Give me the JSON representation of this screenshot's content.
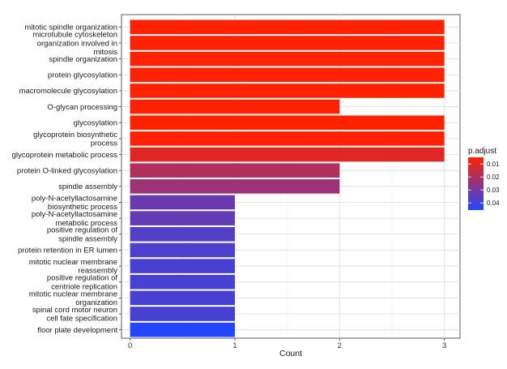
{
  "chart_data": {
    "type": "bar",
    "orientation": "horizontal",
    "title": "",
    "xlabel": "Count",
    "ylabel": "",
    "xlim": [
      0,
      3
    ],
    "xticks": [
      "0",
      "1",
      "2",
      "3"
    ],
    "grid": true,
    "categories": [
      [
        "mitotic spindle organization"
      ],
      [
        "microtubule cytoskeleton",
        "organization involved in",
        "mitosis"
      ],
      [
        "spindle organization"
      ],
      [
        "protein glycosylation"
      ],
      [
        "macromolecule glycosylation"
      ],
      [
        "O-glycan processing"
      ],
      [
        "glycosylation"
      ],
      [
        "glycoprotein biosynthetic",
        "process"
      ],
      [
        "glycoprotein metabolic process"
      ],
      [
        "protein O-linked glycosylation"
      ],
      [
        "spindle assembly"
      ],
      [
        "poly-N-acetyllactosamine",
        "biosynthetic process"
      ],
      [
        "poly-N-acetyllactosamine",
        "metabolic process"
      ],
      [
        "positive regulation of",
        "spindle assembly"
      ],
      [
        "protein retention in ER lumen"
      ],
      [
        "mitotic nuclear membrane",
        "reassembly"
      ],
      [
        "positive regulation of",
        "centriole replication"
      ],
      [
        "mitotic nuclear membrane",
        "organization"
      ],
      [
        "spinal cord motor neuron",
        "cell fate specification"
      ],
      [
        "floor plate development"
      ]
    ],
    "values": [
      3,
      3,
      3,
      3,
      3,
      2,
      3,
      3,
      3,
      2,
      2,
      1,
      1,
      1,
      1,
      1,
      1,
      1,
      1,
      1
    ],
    "p_adjust": [
      0.0049,
      0.0049,
      0.0049,
      0.0049,
      0.0049,
      0.0049,
      0.0049,
      0.0049,
      0.0105,
      0.0195,
      0.0235,
      0.0325,
      0.0335,
      0.0365,
      0.0375,
      0.0385,
      0.0385,
      0.0385,
      0.0385,
      0.0455
    ],
    "legend": {
      "title": "p.adjust",
      "position": "right",
      "ticks": [
        {
          "label": "0.01",
          "value": 0.01
        },
        {
          "label": "0.02",
          "value": 0.02
        },
        {
          "label": "0.03",
          "value": 0.03
        },
        {
          "label": "0.04",
          "value": 0.04
        }
      ],
      "range": [
        0.0049,
        0.0455
      ],
      "color_low": "#ff2200",
      "color_high": "#2246ff"
    }
  }
}
